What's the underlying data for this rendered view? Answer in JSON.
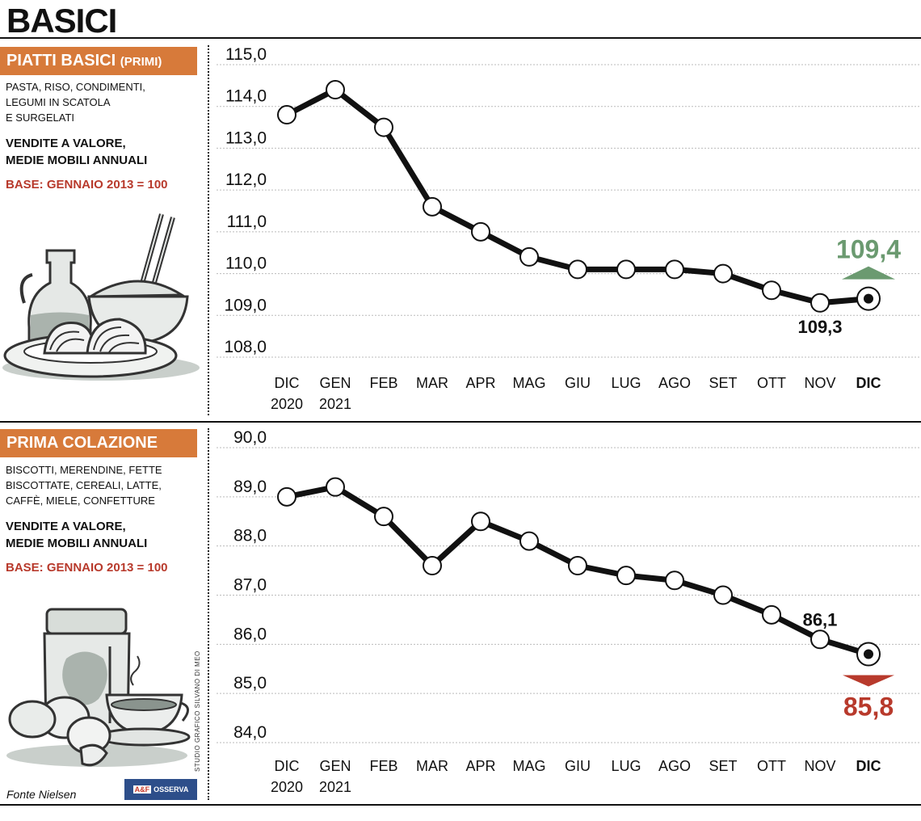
{
  "page_title": "BASICI",
  "panels": [
    {
      "header_main": "PIATTI BASICI",
      "header_sub": "(PRIMI)",
      "desc_lines": [
        "PASTA, RISO, CONDIMENTI,",
        "LEGUMI IN SCATOLA",
        "E SURGELATI"
      ],
      "valore_lines": [
        "VENDITE A VALORE,",
        "MEDIE MOBILI ANNUALI"
      ],
      "base": "BASE: GENNAIO 2013 = 100"
    },
    {
      "header_main": "PRIMA COLAZIONE",
      "header_sub": "",
      "desc_lines": [
        "BISCOTTI, MERENDINE, FETTE",
        "BISCOTTATE, CEREALI, LATTE,",
        "CAFFÈ, MIELE, CONFETTURE"
      ],
      "valore_lines": [
        "VENDITE A VALORE,",
        "MEDIE MOBILI ANNUALI"
      ],
      "base": "BASE: GENNAIO 2013 = 100"
    }
  ],
  "footer": {
    "fonte": "Fonte Nielsen",
    "logo_mark": "A&F",
    "logo_text": "OSSERVA ITALIA",
    "credit": "STUDIO GRAFICO SILVANO DI MEO"
  },
  "colors": {
    "orange_header": "#d77a3a",
    "green_up": "#6b9a70",
    "red_down": "#b83a2c",
    "line": "#111111",
    "grid": "#bbbbbb"
  },
  "chart_data": [
    {
      "type": "line",
      "categories": [
        [
          "DIC",
          "2020"
        ],
        [
          "GEN",
          "2021"
        ],
        [
          "FEB"
        ],
        [
          "MAR"
        ],
        [
          "APR"
        ],
        [
          "MAG"
        ],
        [
          "GIU"
        ],
        [
          "LUG"
        ],
        [
          "AGO"
        ],
        [
          "SET"
        ],
        [
          "OTT"
        ],
        [
          "NOV"
        ],
        [
          "DIC"
        ]
      ],
      "values": [
        113.8,
        114.4,
        113.5,
        111.6,
        111.0,
        110.4,
        110.1,
        110.1,
        110.1,
        110.0,
        109.6,
        109.3,
        109.4
      ],
      "ylim": [
        108.0,
        115.0
      ],
      "yticks": [
        "108,0",
        "109,0",
        "110,0",
        "111,0",
        "112,0",
        "113,0",
        "114,0",
        "115,0"
      ],
      "highlight_last_category": true,
      "annotations": [
        {
          "label": "109,3",
          "index": 11,
          "placement": "below"
        },
        {
          "label": "109,4",
          "index": 12,
          "placement": "above",
          "trend": "up",
          "color": "#6b9a70"
        }
      ],
      "grid": true
    },
    {
      "type": "line",
      "categories": [
        [
          "DIC",
          "2020"
        ],
        [
          "GEN",
          "2021"
        ],
        [
          "FEB"
        ],
        [
          "MAR"
        ],
        [
          "APR"
        ],
        [
          "MAG"
        ],
        [
          "GIU"
        ],
        [
          "LUG"
        ],
        [
          "AGO"
        ],
        [
          "SET"
        ],
        [
          "OTT"
        ],
        [
          "NOV"
        ],
        [
          "DIC"
        ]
      ],
      "values": [
        89.0,
        89.2,
        88.6,
        87.6,
        88.5,
        88.1,
        87.6,
        87.4,
        87.3,
        87.0,
        86.6,
        86.1,
        85.8
      ],
      "ylim": [
        84.0,
        90.0
      ],
      "yticks": [
        "84,0",
        "85,0",
        "86,0",
        "87,0",
        "88,0",
        "89,0",
        "90,0"
      ],
      "highlight_last_category": true,
      "annotations": [
        {
          "label": "86,1",
          "index": 11,
          "placement": "above"
        },
        {
          "label": "85,8",
          "index": 12,
          "placement": "below",
          "trend": "down",
          "color": "#b83a2c"
        }
      ],
      "grid": true
    }
  ]
}
